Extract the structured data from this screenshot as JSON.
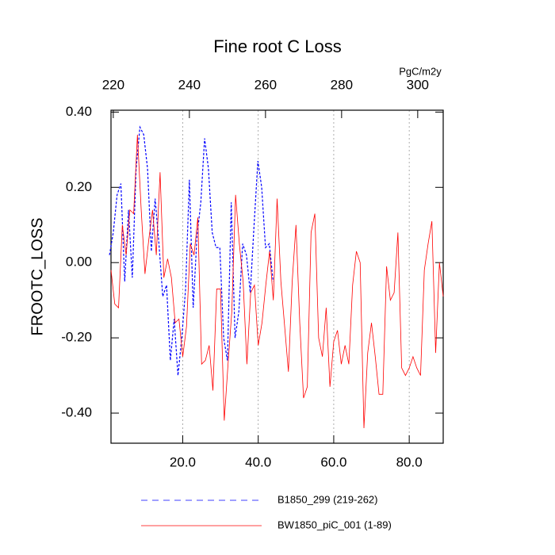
{
  "chart_data": {
    "type": "line",
    "title": "Fine root C Loss",
    "ylabel": "FROOTC_LOSS",
    "x2_units": "PgC/m2y",
    "xlim": [
      1,
      89
    ],
    "xticks": [
      {
        "value": 20,
        "label": "20.0"
      },
      {
        "value": 40,
        "label": "40.0"
      },
      {
        "value": 60,
        "label": "60.0"
      },
      {
        "value": 80,
        "label": "80.0"
      }
    ],
    "xtick_color": "#ff0000",
    "x2lim": [
      219.4,
      306.7
    ],
    "x2ticks": [
      220,
      240,
      260,
      280,
      300
    ],
    "x2tick_color": "#0000ff",
    "ylim": [
      -0.48,
      0.405
    ],
    "yticks": [
      {
        "value": 0.4,
        "label": "0.40"
      },
      {
        "value": 0.2,
        "label": "0.20"
      },
      {
        "value": 0,
        "label": "0.00"
      },
      {
        "value": -0.2,
        "label": "-0.20"
      },
      {
        "value": -0.4,
        "label": "-0.40"
      }
    ],
    "grid": true,
    "series": [
      {
        "name": "B1850_299 (219-262)",
        "color": "#0000ff",
        "dash": true,
        "axis": "x2",
        "x": [
          219,
          220,
          221,
          222,
          223,
          224,
          225,
          226,
          227,
          228,
          229,
          230,
          231,
          232,
          233,
          234,
          235,
          236,
          237,
          238,
          239,
          240,
          241,
          242,
          243,
          244,
          245,
          246,
          247,
          248,
          249,
          250,
          251,
          252,
          253,
          254,
          255,
          256,
          257,
          258,
          259,
          260,
          261,
          262
        ],
        "values": [
          0.02,
          0.08,
          0.18,
          0.21,
          -0.05,
          0.14,
          -0.04,
          0.25,
          0.36,
          0.34,
          0.25,
          0.03,
          0.17,
          0.05,
          -0.09,
          -0.06,
          -0.26,
          -0.15,
          -0.3,
          -0.2,
          -0.07,
          0.22,
          -0.12,
          0.07,
          0.16,
          0.33,
          0.25,
          0.08,
          0.04,
          0.04,
          -0.2,
          -0.26,
          0.16,
          -0.2,
          -0.13,
          0.05,
          0.02,
          -0.08,
          0.1,
          0.27,
          0.2,
          0.04,
          0.05,
          -0.05
        ]
      },
      {
        "name": "BW1850_piC_001 (1-89)",
        "color": "#ff0000",
        "dash": false,
        "x": [
          1,
          2,
          3,
          4,
          5,
          6,
          7,
          8,
          9,
          10,
          11,
          12,
          13,
          14,
          15,
          16,
          17,
          18,
          19,
          20,
          21,
          22,
          23,
          24,
          25,
          26,
          27,
          28,
          29,
          30,
          31,
          32,
          33,
          34,
          35,
          36,
          37,
          38,
          39,
          40,
          41,
          42,
          43,
          44,
          45,
          46,
          47,
          48,
          49,
          50,
          51,
          52,
          53,
          54,
          55,
          56,
          57,
          58,
          59,
          60,
          61,
          62,
          63,
          64,
          65,
          66,
          67,
          68,
          69,
          70,
          71,
          72,
          73,
          74,
          75,
          76,
          77,
          78,
          79,
          80,
          81,
          82,
          83,
          84,
          85,
          86,
          87,
          88,
          89
        ],
        "values": [
          -0.02,
          -0.11,
          -0.12,
          0.1,
          0.02,
          0.14,
          0.13,
          0.34,
          0.14,
          -0.03,
          0.06,
          0.14,
          0.02,
          0.24,
          -0.04,
          0.01,
          -0.04,
          -0.16,
          -0.15,
          -0.25,
          -0.17,
          0.05,
          0.02,
          0.12,
          -0.27,
          -0.26,
          -0.22,
          -0.34,
          -0.07,
          -0.07,
          -0.42,
          -0.27,
          -0.13,
          0.18,
          0.05,
          -0.05,
          -0.27,
          -0.08,
          -0.06,
          -0.22,
          -0.16,
          -0.06,
          0.03,
          -0.1,
          0.17,
          -0.05,
          -0.17,
          -0.29,
          -0.05,
          0.1,
          -0.16,
          -0.36,
          -0.33,
          0.08,
          0.13,
          -0.2,
          -0.25,
          -0.12,
          -0.33,
          -0.21,
          -0.18,
          -0.27,
          -0.22,
          -0.27,
          -0.06,
          0.03,
          0.0,
          -0.44,
          -0.24,
          -0.16,
          -0.25,
          -0.35,
          -0.35,
          -0.01,
          -0.1,
          -0.08,
          0.08,
          -0.28,
          -0.3,
          -0.28,
          -0.25,
          -0.28,
          -0.3,
          -0.02,
          0.05,
          0.11,
          -0.24,
          0.0,
          -0.09
        ]
      }
    ]
  }
}
